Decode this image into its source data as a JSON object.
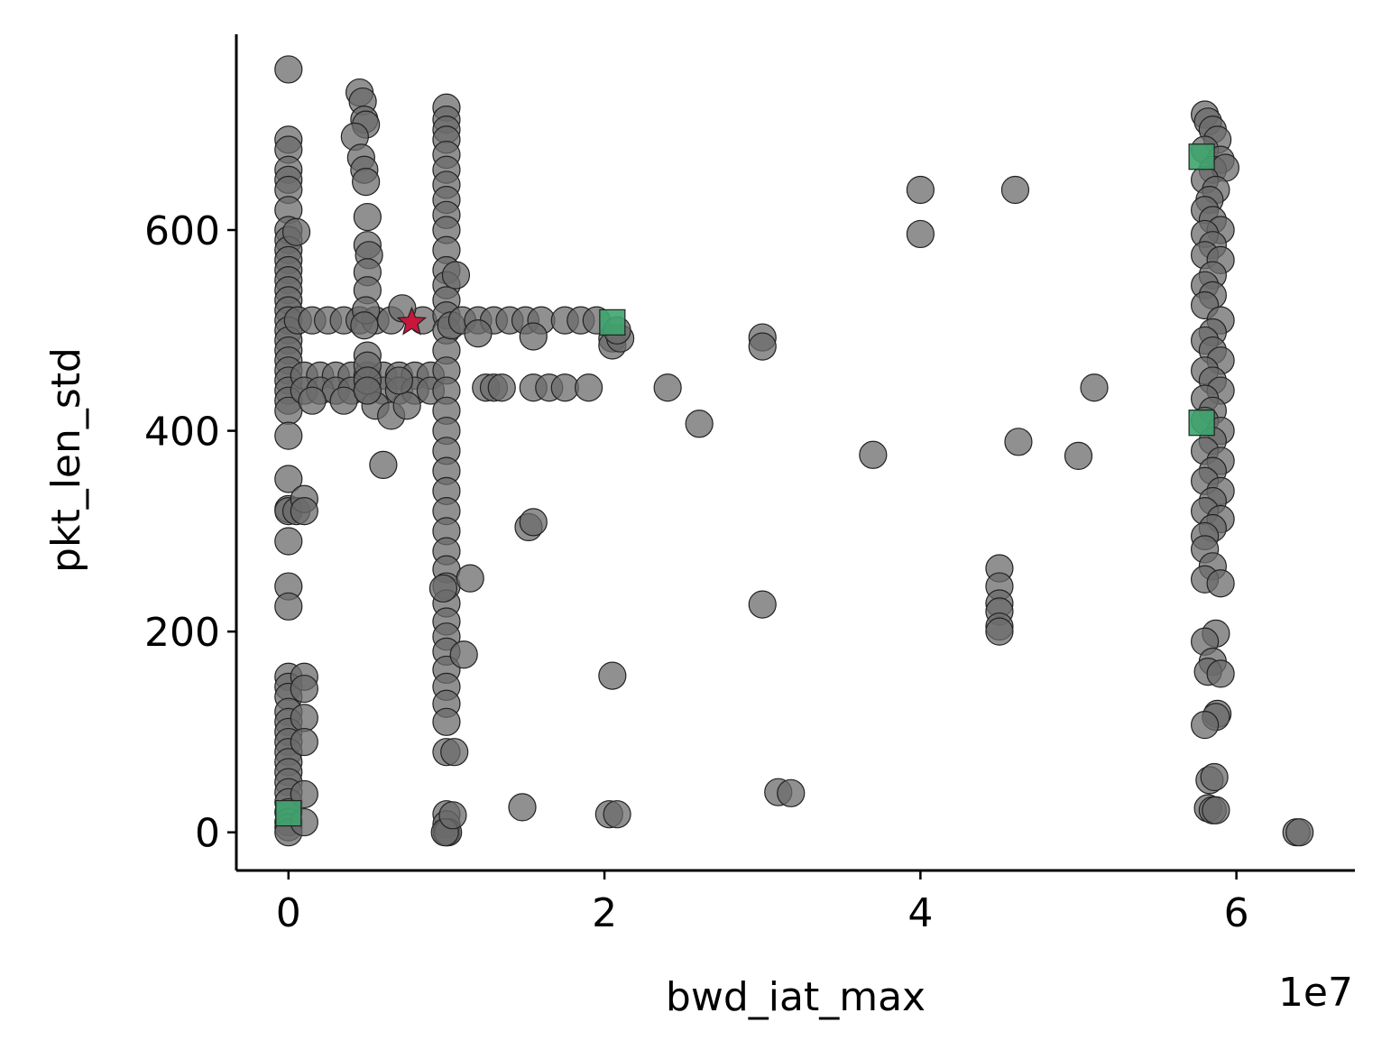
{
  "chart_data": {
    "type": "scatter",
    "xlabel": "bwd_iat_max",
    "ylabel": "pkt_len_std",
    "x_offset_text": "1e7",
    "xlim": [
      -3300000,
      67500000
    ],
    "ylim": [
      -38,
      795
    ],
    "xticks": [
      0,
      20000000,
      40000000,
      60000000
    ],
    "xtick_labels": [
      "0",
      "2",
      "4",
      "6"
    ],
    "yticks": [
      0,
      200,
      400,
      600
    ],
    "ytick_labels": [
      "0",
      "200",
      "400",
      "600"
    ],
    "grid": false,
    "colors": {
      "points": "#6b6b6b",
      "highlight_star": "#c8163d",
      "highlight_square": "#3fa46e",
      "edge": "#222222"
    },
    "series": [
      {
        "marker": "circle",
        "points": [
          [
            0,
            760
          ],
          [
            0,
            690
          ],
          [
            0,
            680
          ],
          [
            0,
            660
          ],
          [
            0,
            650
          ],
          [
            0,
            640
          ],
          [
            0,
            620
          ],
          [
            0,
            600
          ],
          [
            0,
            590
          ],
          [
            0,
            580
          ],
          [
            0,
            570
          ],
          [
            0,
            560
          ],
          [
            0,
            550
          ],
          [
            0,
            540
          ],
          [
            0,
            530
          ],
          [
            0,
            520
          ],
          [
            0,
            510
          ],
          [
            0,
            500
          ],
          [
            0,
            490
          ],
          [
            0,
            480
          ],
          [
            0,
            470
          ],
          [
            0,
            460
          ],
          [
            0,
            450
          ],
          [
            0,
            440
          ],
          [
            0,
            430
          ],
          [
            0,
            420
          ],
          [
            0,
            395
          ],
          [
            0,
            352
          ],
          [
            0,
            322
          ],
          [
            0,
            320
          ],
          [
            0,
            290
          ],
          [
            0,
            245
          ],
          [
            0,
            225
          ],
          [
            0,
            155
          ],
          [
            0,
            145
          ],
          [
            0,
            135
          ],
          [
            0,
            120
          ],
          [
            0,
            110
          ],
          [
            0,
            100
          ],
          [
            0,
            90
          ],
          [
            0,
            80
          ],
          [
            0,
            70
          ],
          [
            0,
            60
          ],
          [
            0,
            50
          ],
          [
            0,
            40
          ],
          [
            0,
            30
          ],
          [
            0,
            20
          ],
          [
            0,
            10
          ],
          [
            0,
            5
          ],
          [
            0,
            0
          ],
          [
            500000,
            320
          ],
          [
            500000,
            598
          ],
          [
            1000000,
            332
          ],
          [
            1000000,
            320
          ],
          [
            1000000,
            155
          ],
          [
            1000000,
            143
          ],
          [
            1000000,
            114
          ],
          [
            1000000,
            38
          ],
          [
            1000000,
            10
          ],
          [
            1000000,
            90
          ],
          [
            600000,
            510
          ],
          [
            1500000,
            510
          ],
          [
            2500000,
            510
          ],
          [
            3500000,
            510
          ],
          [
            4500000,
            510
          ],
          [
            5500000,
            510
          ],
          [
            6500000,
            510
          ],
          [
            8500000,
            510
          ],
          [
            1000000,
            455
          ],
          [
            2000000,
            455
          ],
          [
            3000000,
            455
          ],
          [
            4000000,
            455
          ],
          [
            5000000,
            455
          ],
          [
            6000000,
            455
          ],
          [
            7000000,
            455
          ],
          [
            8000000,
            455
          ],
          [
            9000000,
            455
          ],
          [
            1000000,
            440
          ],
          [
            2000000,
            440
          ],
          [
            3000000,
            440
          ],
          [
            4000000,
            440
          ],
          [
            5000000,
            440
          ],
          [
            6000000,
            440
          ],
          [
            7000000,
            440
          ],
          [
            8000000,
            440
          ],
          [
            9000000,
            440
          ],
          [
            1500000,
            430
          ],
          [
            3500000,
            430
          ],
          [
            5500000,
            425
          ],
          [
            6500000,
            415
          ],
          [
            7500000,
            425
          ],
          [
            6000000,
            366
          ],
          [
            7200000,
            522
          ],
          [
            7000000,
            450
          ],
          [
            4500000,
            737
          ],
          [
            4700000,
            728
          ],
          [
            4800000,
            710
          ],
          [
            4900000,
            705
          ],
          [
            4200000,
            693
          ],
          [
            4600000,
            672
          ],
          [
            4800000,
            660
          ],
          [
            4900000,
            648
          ],
          [
            5000000,
            613
          ],
          [
            5000000,
            585
          ],
          [
            5100000,
            575
          ],
          [
            5000000,
            558
          ],
          [
            5000000,
            540
          ],
          [
            4900000,
            520
          ],
          [
            4800000,
            505
          ],
          [
            5000000,
            475
          ],
          [
            5000000,
            465
          ],
          [
            5000000,
            450
          ],
          [
            5000000,
            440
          ],
          [
            10000000,
            722
          ],
          [
            10000000,
            710
          ],
          [
            10000000,
            700
          ],
          [
            10000000,
            690
          ],
          [
            10000000,
            675
          ],
          [
            10000000,
            660
          ],
          [
            10000000,
            645
          ],
          [
            10000000,
            630
          ],
          [
            10000000,
            615
          ],
          [
            10000000,
            600
          ],
          [
            10000000,
            580
          ],
          [
            10000000,
            560
          ],
          [
            10000000,
            545
          ],
          [
            10000000,
            530
          ],
          [
            10000000,
            515
          ],
          [
            10000000,
            500
          ],
          [
            10000000,
            480
          ],
          [
            10000000,
            460
          ],
          [
            10000000,
            440
          ],
          [
            10000000,
            420
          ],
          [
            10000000,
            400
          ],
          [
            10000000,
            380
          ],
          [
            10000000,
            360
          ],
          [
            10000000,
            340
          ],
          [
            10000000,
            320
          ],
          [
            10000000,
            300
          ],
          [
            10000000,
            280
          ],
          [
            10000000,
            262
          ],
          [
            10000000,
            245
          ],
          [
            10000000,
            228
          ],
          [
            10000000,
            210
          ],
          [
            10000000,
            195
          ],
          [
            10000000,
            180
          ],
          [
            10000000,
            162
          ],
          [
            10000000,
            145
          ],
          [
            10000000,
            128
          ],
          [
            10000000,
            110
          ],
          [
            10000000,
            80
          ],
          [
            10000000,
            18
          ],
          [
            10000000,
            8
          ],
          [
            10000000,
            0
          ],
          [
            10100000,
            0
          ],
          [
            9900000,
            0
          ],
          [
            9800000,
            243
          ],
          [
            11500000,
            253
          ],
          [
            11100000,
            177
          ],
          [
            10500000,
            80
          ],
          [
            10400000,
            17
          ],
          [
            10600000,
            555
          ],
          [
            10300000,
            505
          ],
          [
            11000000,
            510
          ],
          [
            12000000,
            510
          ],
          [
            13000000,
            510
          ],
          [
            14000000,
            510
          ],
          [
            15000000,
            510
          ],
          [
            16000000,
            510
          ],
          [
            17500000,
            510
          ],
          [
            18500000,
            510
          ],
          [
            19500000,
            510
          ],
          [
            12000000,
            497
          ],
          [
            15500000,
            494
          ],
          [
            12500000,
            443
          ],
          [
            13000000,
            443
          ],
          [
            13500000,
            443
          ],
          [
            15500000,
            443
          ],
          [
            16500000,
            443
          ],
          [
            17500000,
            443
          ],
          [
            19000000,
            443
          ],
          [
            20500000,
            492
          ],
          [
            20500000,
            485
          ],
          [
            21000000,
            492
          ],
          [
            20800000,
            500
          ],
          [
            24000000,
            443
          ],
          [
            26000000,
            407
          ],
          [
            30000000,
            493
          ],
          [
            30000000,
            484
          ],
          [
            37000000,
            376
          ],
          [
            40000000,
            640
          ],
          [
            40000000,
            596
          ],
          [
            46000000,
            640
          ],
          [
            51000000,
            443
          ],
          [
            46200000,
            389
          ],
          [
            50000000,
            375
          ],
          [
            45000000,
            263
          ],
          [
            45000000,
            245
          ],
          [
            45000000,
            228
          ],
          [
            45000000,
            220
          ],
          [
            45000000,
            205
          ],
          [
            45000000,
            200
          ],
          [
            30000000,
            227
          ],
          [
            31000000,
            40
          ],
          [
            31800000,
            39
          ],
          [
            20500000,
            156
          ],
          [
            20300000,
            18
          ],
          [
            20800000,
            18
          ],
          [
            14800000,
            25
          ],
          [
            15200000,
            304
          ],
          [
            15500000,
            309
          ],
          [
            58000000,
            715
          ],
          [
            58200000,
            708
          ],
          [
            58500000,
            700
          ],
          [
            58800000,
            690
          ],
          [
            58000000,
            680
          ],
          [
            59000000,
            670
          ],
          [
            58500000,
            660
          ],
          [
            59300000,
            662
          ],
          [
            58000000,
            650
          ],
          [
            58700000,
            640
          ],
          [
            58300000,
            630
          ],
          [
            58000000,
            620
          ],
          [
            58500000,
            610
          ],
          [
            59000000,
            600
          ],
          [
            58000000,
            596
          ],
          [
            58500000,
            585
          ],
          [
            58000000,
            575
          ],
          [
            59000000,
            570
          ],
          [
            58500000,
            555
          ],
          [
            58000000,
            545
          ],
          [
            58500000,
            535
          ],
          [
            58000000,
            525
          ],
          [
            59000000,
            510
          ],
          [
            58500000,
            498
          ],
          [
            58000000,
            490
          ],
          [
            58500000,
            480
          ],
          [
            59000000,
            470
          ],
          [
            58000000,
            460
          ],
          [
            58500000,
            450
          ],
          [
            59000000,
            440
          ],
          [
            58000000,
            432
          ],
          [
            58500000,
            420
          ],
          [
            58000000,
            410
          ],
          [
            59000000,
            400
          ],
          [
            58500000,
            390
          ],
          [
            58000000,
            380
          ],
          [
            59000000,
            370
          ],
          [
            58500000,
            360
          ],
          [
            58000000,
            350
          ],
          [
            59000000,
            340
          ],
          [
            58500000,
            330
          ],
          [
            58000000,
            320
          ],
          [
            59000000,
            312
          ],
          [
            58500000,
            303
          ],
          [
            58000000,
            295
          ],
          [
            58000000,
            282
          ],
          [
            58500000,
            265
          ],
          [
            58000000,
            252
          ],
          [
            59000000,
            248
          ],
          [
            58700000,
            198
          ],
          [
            58000000,
            190
          ],
          [
            58500000,
            170
          ],
          [
            58200000,
            160
          ],
          [
            59000000,
            158
          ],
          [
            58800000,
            118
          ],
          [
            58700000,
            115
          ],
          [
            58000000,
            107
          ],
          [
            58300000,
            52
          ],
          [
            58600000,
            55
          ],
          [
            58200000,
            24
          ],
          [
            58500000,
            22
          ],
          [
            58700000,
            22
          ],
          [
            63800000,
            0
          ],
          [
            64000000,
            0
          ]
        ]
      },
      {
        "marker": "star",
        "points": [
          [
            7800000,
            508
          ]
        ]
      },
      {
        "marker": "square",
        "points": [
          [
            0,
            19
          ],
          [
            20500000,
            508
          ],
          [
            57800000,
            673
          ],
          [
            57800000,
            408
          ]
        ]
      }
    ]
  }
}
